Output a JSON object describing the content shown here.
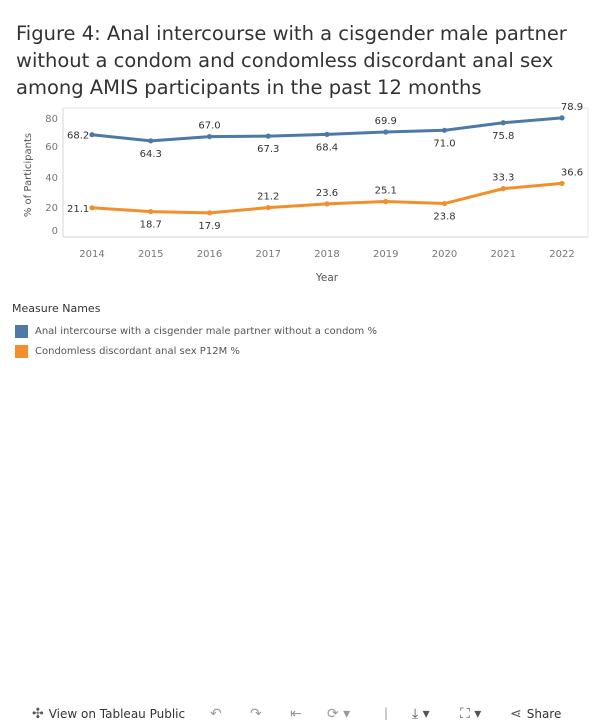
{
  "title": "Figure 4: Anal intercourse with a cisgender male partner without a condom and condomless discordant anal sex among AMIS participants in the past 12 months",
  "chart_data": {
    "type": "line",
    "x": [
      "2014",
      "2015",
      "2016",
      "2017",
      "2018",
      "2019",
      "2020",
      "2021",
      "2022"
    ],
    "series": [
      {
        "name": "Anal intercourse with a cisgender male partner without a condom %",
        "color": "#4e79a7",
        "values": [
          68.2,
          64.3,
          67.0,
          67.3,
          68.4,
          69.9,
          71.0,
          75.8,
          78.9
        ],
        "labels": [
          "68.2",
          "64.3",
          "67.0",
          "67.3",
          "68.4",
          "69.9",
          "71.0",
          "75.8",
          "78.9"
        ]
      },
      {
        "name": "Condomless discordant anal sex P12M %",
        "color": "#f28e2b",
        "values": [
          21.1,
          18.7,
          17.9,
          21.2,
          23.6,
          25.1,
          23.8,
          33.3,
          36.6
        ],
        "labels": [
          "21.1",
          "18.7",
          "17.9",
          "21.2",
          "23.6",
          "25.1",
          "23.8",
          "33.3",
          "36.6"
        ]
      }
    ],
    "xlabel": "Year",
    "ylabel": "% of Participants",
    "yticks": [
      "0",
      "20",
      "40",
      "60",
      "80"
    ],
    "ylim": [
      0,
      82
    ],
    "legend_title": "Measure Names",
    "legend_position": "bottom-left"
  },
  "footer": {
    "view_label": "View on Tableau Public",
    "share_label": "Share"
  }
}
